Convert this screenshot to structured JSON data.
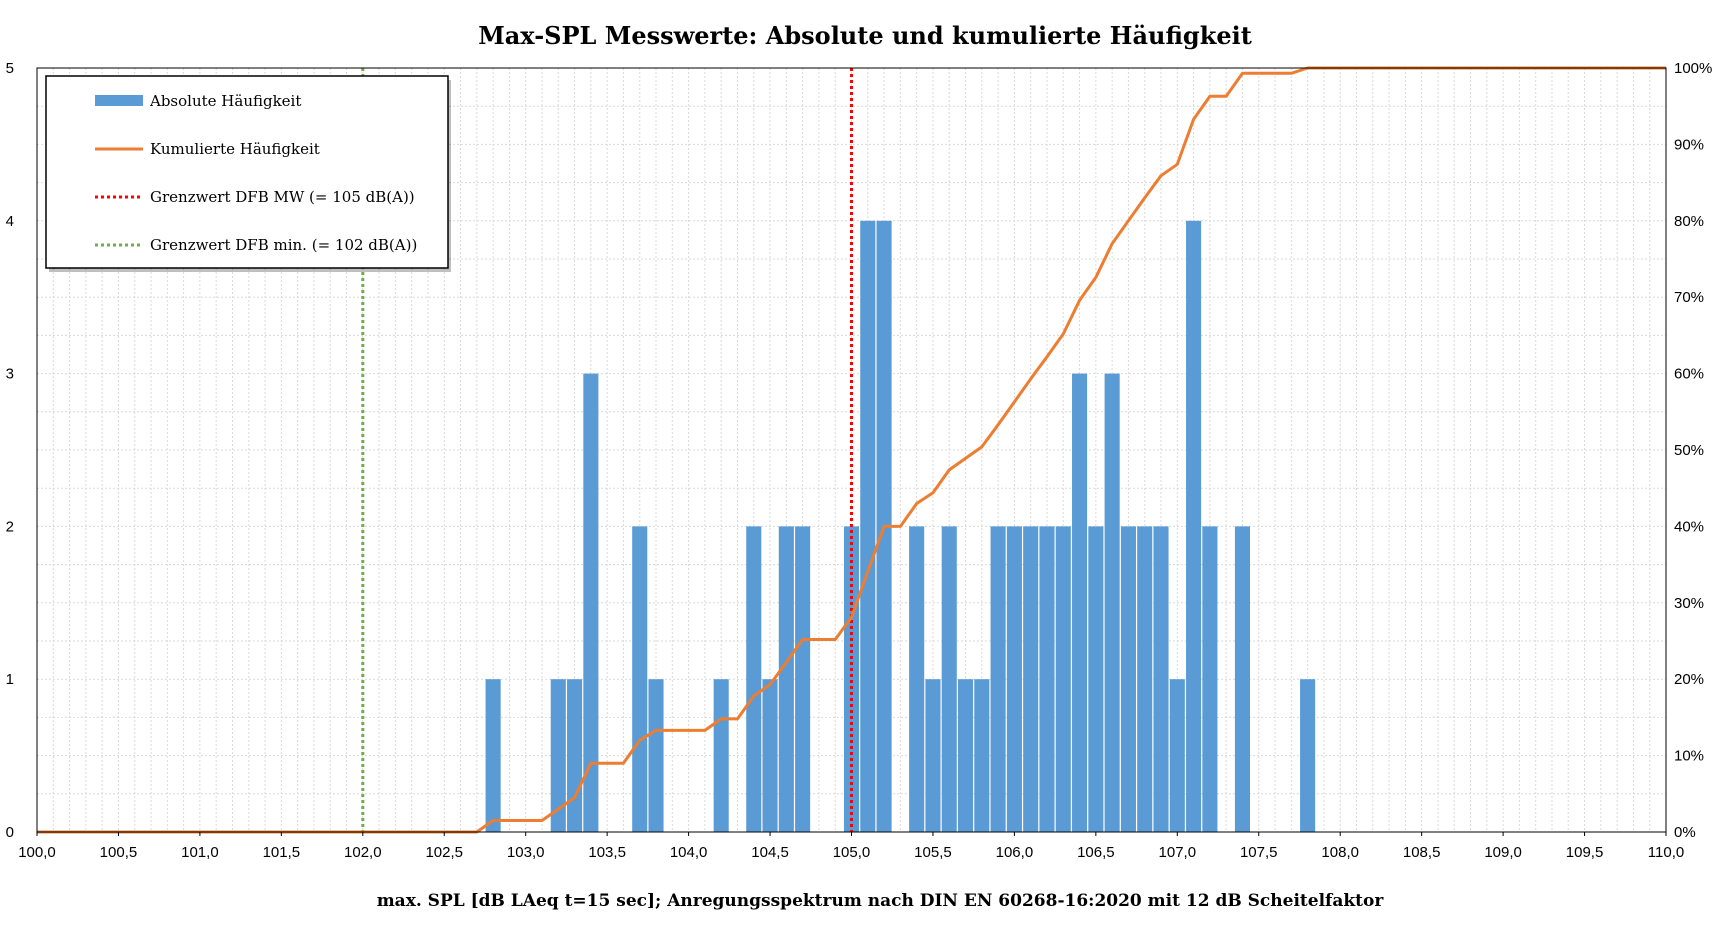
{
  "chart_data": {
    "type": "bar",
    "title": "Max-SPL Messwerte: Absolute und kumulierte Häufigkeit",
    "xlabel": "max. SPL [dB LAeq t=15 sec]; Anregungsspektrum nach DIN EN 60268-16:2020 mit 12 dB Scheitelfaktor",
    "ylabel": "",
    "y2label": "",
    "xlim": [
      100.0,
      110.0
    ],
    "ylim": [
      0,
      5
    ],
    "y2lim": [
      0,
      100
    ],
    "x_ticks": [
      "100,0",
      "100,5",
      "101,0",
      "101,5",
      "102,0",
      "102,5",
      "103,0",
      "103,5",
      "104,0",
      "104,5",
      "105,0",
      "105,5",
      "106,0",
      "106,5",
      "107,0",
      "107,5",
      "108,0",
      "108,5",
      "109,0",
      "109,5",
      "110,0"
    ],
    "y_ticks": [
      "0",
      "1",
      "2",
      "3",
      "4",
      "5"
    ],
    "y2_ticks": [
      "0%",
      "10%",
      "20%",
      "30%",
      "40%",
      "50%",
      "60%",
      "70%",
      "80%",
      "90%",
      "100%"
    ],
    "grid": true,
    "legend_position": "top-left",
    "bar_width": 0.1,
    "series": [
      {
        "name": "Absolute Häufigkeit",
        "kind": "bar",
        "color": "#5b9bd5",
        "x": [
          102.8,
          103.2,
          103.3,
          103.4,
          103.7,
          103.8,
          104.2,
          104.4,
          104.5,
          104.6,
          104.7,
          105.0,
          105.1,
          105.2,
          105.4,
          105.5,
          105.6,
          105.7,
          105.8,
          105.9,
          106.0,
          106.1,
          106.2,
          106.3,
          106.4,
          106.5,
          106.6,
          106.7,
          106.8,
          106.9,
          107.0,
          107.1,
          107.2,
          107.4,
          107.8
        ],
        "values": [
          1,
          1,
          1,
          3,
          2,
          1,
          1,
          2,
          1,
          2,
          2,
          2,
          4,
          4,
          2,
          1,
          2,
          1,
          1,
          2,
          2,
          2,
          2,
          2,
          3,
          2,
          3,
          2,
          2,
          2,
          1,
          4,
          2,
          2,
          1
        ]
      },
      {
        "name": "Kumulierte Häufigkeit",
        "kind": "line",
        "axis": "right",
        "color": "#ed7d31",
        "x": [
          100.0,
          102.7,
          102.8,
          103.1,
          103.2,
          103.3,
          103.4,
          103.6,
          103.7,
          103.8,
          104.1,
          104.2,
          104.3,
          104.4,
          104.5,
          104.6,
          104.7,
          104.9,
          105.0,
          105.1,
          105.2,
          105.3,
          105.4,
          105.5,
          105.6,
          105.7,
          105.8,
          105.9,
          106.0,
          106.1,
          106.2,
          106.3,
          106.4,
          106.5,
          106.6,
          106.7,
          106.8,
          106.9,
          107.0,
          107.1,
          107.2,
          107.3,
          107.4,
          107.7,
          107.8,
          110.0
        ],
        "values": [
          0,
          0,
          1.5,
          1.5,
          3,
          4.5,
          9,
          9,
          12,
          13.3,
          13.3,
          14.8,
          14.8,
          17.8,
          19.3,
          22.2,
          25.2,
          25.2,
          28.1,
          34.1,
          40,
          40,
          43,
          44.4,
          47.4,
          48.9,
          50.4,
          53.3,
          56.3,
          59.3,
          62.2,
          65.2,
          69.6,
          72.6,
          77,
          80,
          83,
          85.9,
          87.4,
          93.3,
          96.3,
          96.3,
          99.3,
          99.3,
          100,
          100
        ]
      },
      {
        "name": "Grenzwert DFB MW (= 105 dB(A))",
        "kind": "vline",
        "color": "#ff0000",
        "x": 105.0
      },
      {
        "name": "Grenzwert DFB min. (= 102 dB(A))",
        "kind": "vline",
        "color": "#70ad47",
        "x": 102.0
      }
    ]
  }
}
